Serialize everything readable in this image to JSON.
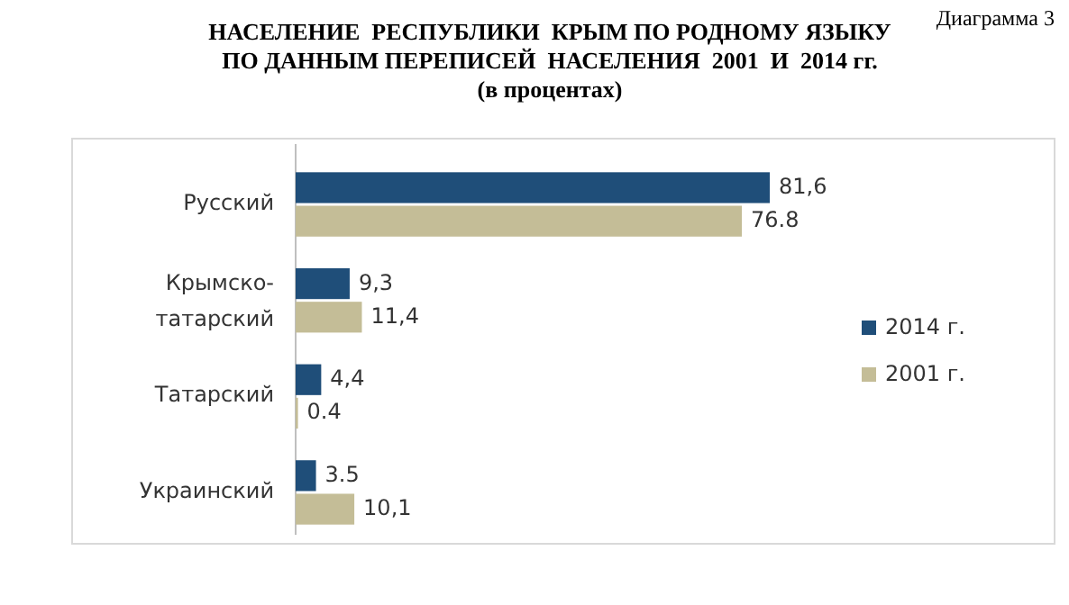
{
  "chart_data": {
    "type": "bar",
    "orientation": "horizontal",
    "title": "НАСЕЛЕНИЕ  РЕСПУБЛИКИ  КРЫМ ПО РОДНОМУ ЯЗЫКУ\nПО ДАННЫМ ПЕРЕПИСЕЙ  НАСЕЛЕНИЯ  2001  И  2014 гг.",
    "subtitle": "(в процентах)",
    "annotations": [
      "Диаграмма 3"
    ],
    "categories": [
      "Русский",
      "Крымско-татарский",
      "Татарский",
      "Украинский"
    ],
    "series": [
      {
        "name": "2014 г.",
        "color": "#1f4e79",
        "values": [
          81.6,
          9.3,
          4.4,
          3.5
        ],
        "value_labels": [
          "81,6",
          "9,3",
          "4,4",
          "3.5"
        ]
      },
      {
        "name": "2001 г.",
        "color": "#c4bd97",
        "values": [
          76.8,
          11.4,
          0.4,
          10.1
        ],
        "value_labels": [
          "76.8",
          "11,4",
          "0.4",
          "10,1"
        ]
      }
    ],
    "legend": "right"
  }
}
